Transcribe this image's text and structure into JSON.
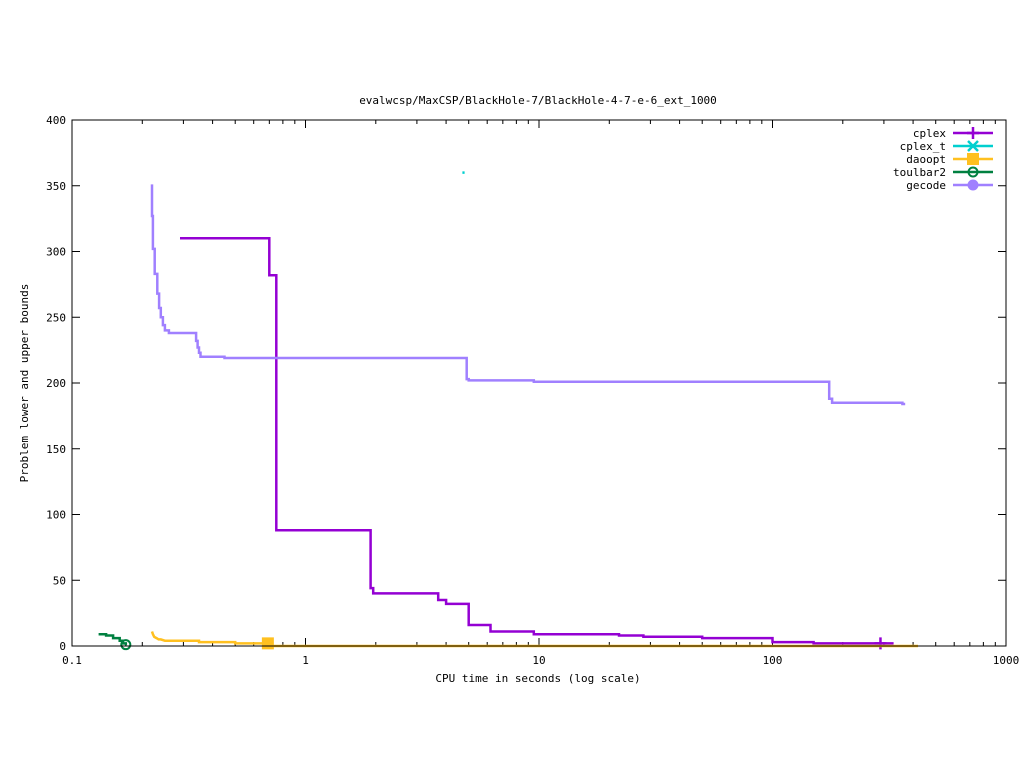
{
  "chart_data": {
    "type": "line",
    "title": "evalwcsp/MaxCSP/BlackHole-7/BlackHole-4-7-e-6_ext_1000",
    "xlabel": "CPU time in seconds (log scale)",
    "ylabel": "Problem lower and upper bounds",
    "xscale": "log",
    "xlim": [
      0.1,
      1000
    ],
    "ylim": [
      0,
      400
    ],
    "xticks": [
      0.1,
      1,
      10,
      100,
      1000
    ],
    "xtick_labels": [
      "0.1",
      "1",
      "10",
      "100",
      "1000"
    ],
    "yticks": [
      0,
      50,
      100,
      150,
      200,
      250,
      300,
      350,
      400
    ],
    "ytick_labels": [
      "0",
      "50",
      "100",
      "150",
      "200",
      "250",
      "300",
      "350",
      "400"
    ],
    "legend_position": "top-right",
    "series": [
      {
        "name": "cplex",
        "color": "#9400d3",
        "marker": "plus",
        "marker_points": [
          [
            290,
            2
          ]
        ],
        "points": [
          [
            0.29,
            310
          ],
          [
            0.7,
            310
          ],
          [
            0.7,
            282
          ],
          [
            0.75,
            282
          ],
          [
            0.75,
            88
          ],
          [
            1.9,
            88
          ],
          [
            1.9,
            44
          ],
          [
            1.95,
            44
          ],
          [
            1.95,
            40
          ],
          [
            3.7,
            40
          ],
          [
            3.7,
            35
          ],
          [
            4.0,
            35
          ],
          [
            4.0,
            32
          ],
          [
            5.0,
            32
          ],
          [
            5.0,
            16
          ],
          [
            6.2,
            16
          ],
          [
            6.2,
            11
          ],
          [
            9.5,
            11
          ],
          [
            9.5,
            9
          ],
          [
            22,
            9
          ],
          [
            22,
            8
          ],
          [
            28,
            8
          ],
          [
            28,
            7
          ],
          [
            50,
            7
          ],
          [
            50,
            6
          ],
          [
            100,
            6
          ],
          [
            100,
            3
          ],
          [
            150,
            3
          ],
          [
            150,
            2
          ],
          [
            330,
            2
          ]
        ]
      },
      {
        "name": "cplex_t",
        "color": "#00cfcf",
        "marker": "cross",
        "marker_points": [],
        "points": [
          [
            4.7,
            360
          ],
          [
            4.8,
            360
          ]
        ]
      },
      {
        "name": "daoopt",
        "color": "#ffc020",
        "marker": "square",
        "marker_points": [
          [
            0.69,
            2
          ]
        ],
        "points": [
          [
            0.22,
            11
          ],
          [
            0.222,
            9
          ],
          [
            0.225,
            7
          ],
          [
            0.23,
            6
          ],
          [
            0.235,
            5
          ],
          [
            0.24,
            5
          ],
          [
            0.25,
            4
          ],
          [
            0.35,
            4
          ],
          [
            0.35,
            3
          ],
          [
            0.5,
            3
          ],
          [
            0.5,
            2
          ],
          [
            0.69,
            2
          ],
          [
            0.69,
            0
          ],
          [
            420,
            0
          ]
        ]
      },
      {
        "name": "toulbar2",
        "color": "#008040",
        "marker": "circle",
        "marker_points": [
          [
            0.17,
            1
          ]
        ],
        "points": [
          [
            0.13,
            9
          ],
          [
            0.14,
            9
          ],
          [
            0.14,
            8
          ],
          [
            0.15,
            8
          ],
          [
            0.15,
            6
          ],
          [
            0.16,
            6
          ],
          [
            0.16,
            4
          ],
          [
            0.165,
            4
          ],
          [
            0.165,
            2
          ],
          [
            0.17,
            2
          ],
          [
            0.17,
            1
          ]
        ]
      },
      {
        "name": "gecode",
        "color": "#a080ff",
        "marker": "filled-circle",
        "marker_points": [],
        "points": [
          [
            0.22,
            351
          ],
          [
            0.22,
            327
          ],
          [
            0.222,
            327
          ],
          [
            0.222,
            302
          ],
          [
            0.226,
            302
          ],
          [
            0.226,
            283
          ],
          [
            0.232,
            283
          ],
          [
            0.232,
            268
          ],
          [
            0.236,
            268
          ],
          [
            0.236,
            257
          ],
          [
            0.24,
            257
          ],
          [
            0.24,
            250
          ],
          [
            0.245,
            250
          ],
          [
            0.245,
            244
          ],
          [
            0.25,
            244
          ],
          [
            0.25,
            240
          ],
          [
            0.26,
            240
          ],
          [
            0.26,
            238
          ],
          [
            0.34,
            238
          ],
          [
            0.34,
            232
          ],
          [
            0.345,
            232
          ],
          [
            0.345,
            227
          ],
          [
            0.35,
            227
          ],
          [
            0.35,
            223
          ],
          [
            0.355,
            223
          ],
          [
            0.355,
            220
          ],
          [
            0.45,
            220
          ],
          [
            0.45,
            219
          ],
          [
            4.9,
            219
          ],
          [
            4.9,
            203
          ],
          [
            5.0,
            203
          ],
          [
            5.0,
            202
          ],
          [
            9.5,
            202
          ],
          [
            9.5,
            201
          ],
          [
            175,
            201
          ],
          [
            175,
            188
          ],
          [
            180,
            188
          ],
          [
            180,
            185
          ],
          [
            360,
            185
          ],
          [
            360,
            184
          ],
          [
            370,
            184
          ]
        ]
      }
    ]
  }
}
